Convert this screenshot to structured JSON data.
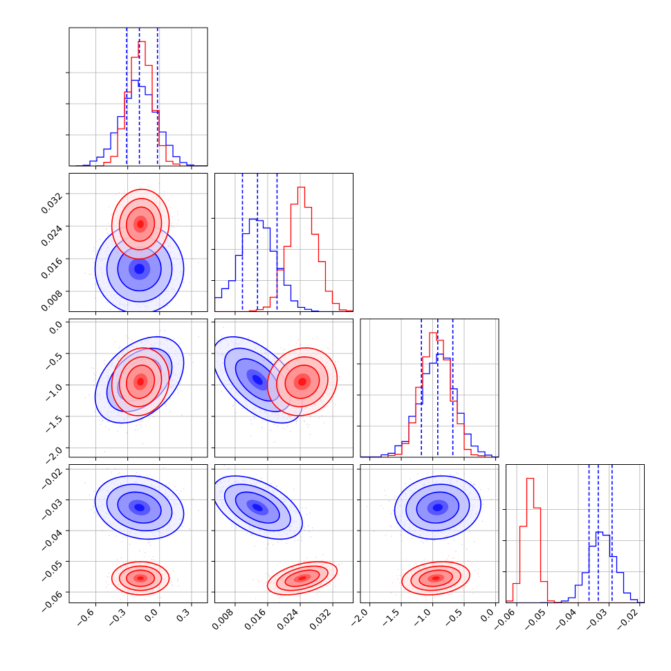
{
  "chart_data": {
    "type": "corner",
    "title": "",
    "grid": true,
    "parameters": [
      {
        "name": "",
        "range": [
          -0.85,
          0.45
        ],
        "ticks": [
          -0.6,
          -0.3,
          0.0,
          0.3
        ],
        "tick_labels": [
          "−0.6",
          "−0.3",
          "0.0",
          "0.3"
        ]
      },
      {
        "name": "",
        "range": [
          0.003,
          0.037
        ],
        "ticks": [
          0.008,
          0.016,
          0.024,
          0.032
        ],
        "tick_labels": [
          "0.008",
          "0.016",
          "0.024",
          "0.032"
        ]
      },
      {
        "name": "",
        "range": [
          -2.15,
          0.05
        ],
        "ticks": [
          -2.0,
          -1.5,
          -1.0,
          -0.5,
          0.0
        ],
        "tick_labels": [
          "−2.0",
          "−1.5",
          "−1.0",
          "−0.5",
          "0.0"
        ]
      },
      {
        "name": "",
        "range": [
          -0.0635,
          -0.0185
        ],
        "ticks": [
          -0.06,
          -0.05,
          -0.04,
          -0.03,
          -0.02
        ],
        "tick_labels": [
          "−0.06",
          "−0.05",
          "−0.04",
          "−0.03",
          "−0.02"
        ]
      }
    ],
    "series": [
      {
        "name": "",
        "color": "#0000ff",
        "mean": [
          -0.19,
          0.0135,
          -0.92,
          -0.0325
        ],
        "std": [
          0.17,
          0.0045,
          0.28,
          0.0042
        ],
        "correlation": {
          "1-0": 0.0,
          "2-0": 0.4,
          "2-1": -0.55,
          "3-0": -0.2,
          "3-1": -0.5,
          "3-2": 0.1
        },
        "quantiles": [
          [
            -0.31,
            -0.19,
            -0.02
          ],
          [
            0.0098,
            0.0135,
            0.0183
          ],
          [
            -1.18,
            -0.92,
            -0.68
          ],
          [
            -0.0365,
            -0.0335,
            -0.029
          ]
        ],
        "quantile_lines": true
      },
      {
        "name": "",
        "color": "#ff0000",
        "mean": [
          -0.18,
          0.0245,
          -0.95,
          -0.0555
        ],
        "std": [
          0.11,
          0.0035,
          0.22,
          0.0022
        ],
        "correlation": {
          "1-0": 0.05,
          "2-0": 0.1,
          "2-1": 0.1,
          "3-0": 0.0,
          "3-1": 0.45,
          "3-2": 0.2
        },
        "quantile_lines": false
      }
    ]
  }
}
